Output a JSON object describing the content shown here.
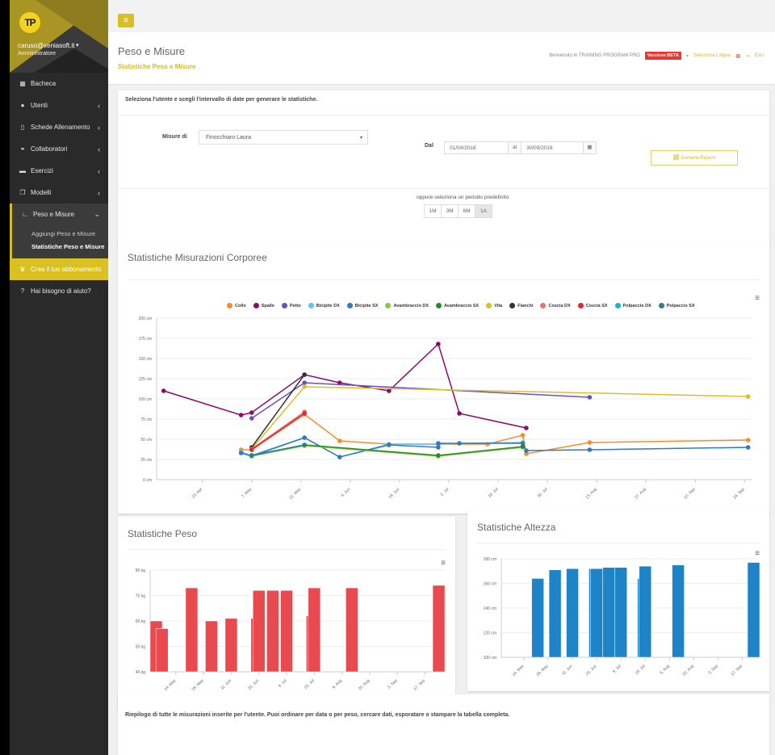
{
  "sidebar": {
    "logo": "TP",
    "user_email": "caruso@xeniasoft.it",
    "user_role": "Amministratore",
    "items": [
      {
        "label": "Bacheca",
        "icon": "dashboard-icon",
        "glyph": "▦"
      },
      {
        "label": "Utenti",
        "icon": "users-icon",
        "glyph": "👥"
      },
      {
        "label": "Schede Allenamento",
        "icon": "clipboard-icon",
        "glyph": "▯"
      },
      {
        "label": "Collaboratori",
        "icon": "handshake-icon",
        "glyph": "⚭"
      },
      {
        "label": "Esercizi",
        "icon": "folder-open-icon",
        "glyph": "▬"
      },
      {
        "label": "Modelli",
        "icon": "copy-icon",
        "glyph": "❐"
      }
    ],
    "open_item": {
      "label": "Peso e Misure",
      "icon": "chart-line-icon",
      "glyph": "∟"
    },
    "sub_items": [
      "Aggiungi Peso e Misure",
      "Statistiche Peso e Misure"
    ],
    "promo": {
      "label": "Crea il tuo abbonamento",
      "glyph": "🏆"
    },
    "help": {
      "label": "Hai bisogno di aiuto?",
      "glyph": "?"
    }
  },
  "header": {
    "title": "Peso e Misure",
    "subtitle": "Statistiche Peso e Misure",
    "welcome": "Benvenuto in TRAINING PROGRAM PRO",
    "beta_badge": "Versione BETA",
    "language": "Seleziona Lingua",
    "exit": "Esci"
  },
  "form": {
    "intro": "Seleziona l'utente e scegli l'intervallo di date per generare le statistiche.",
    "user_label": "Misure di",
    "user_value": "Finocchiaro Laura",
    "from_label": "Dal",
    "from_value": "01/04/2018",
    "to_label": "al",
    "to_value": "30/09/2018",
    "generate_button": "Genera Report",
    "period_label": "oppure seleziona un periodo predefinito",
    "periods": [
      "1M",
      "3M",
      "6M",
      "1A"
    ],
    "active_period": "1A"
  },
  "measure_card": {
    "title": "Statistiche Misurazioni Corporee"
  },
  "peso_card": {
    "title": "Statistiche Peso"
  },
  "alt_card": {
    "title": "Statistiche Altezza"
  },
  "table_card": {
    "intro": "Riepilogo di tutte le misurazioni inserite per l'utente. Puoi ordinare per data o per peso, cercare dati, esporatare o stampare la tabella completa."
  },
  "chart_data": [
    {
      "type": "line",
      "title": "Statistiche Misurazioni Corporee",
      "ylabel": "cm",
      "ylim": [
        0,
        200
      ],
      "yticks": [
        "0 cm",
        "25 cm",
        "50 cm",
        "75 cm",
        "100 cm",
        "125 cm",
        "150 cm",
        "175 cm",
        "200 cm"
      ],
      "xticks": [
        "23. Apr",
        "7. May",
        "21. May",
        "4. Jun",
        "18. Jun",
        "2. Jul",
        "16. Jul",
        "30. Jul",
        "13. Aug",
        "27. Aug",
        "10. Sep",
        "24. Sep"
      ],
      "legend_position": "top",
      "series": [
        {
          "name": "Collo",
          "color": "#f28f2c",
          "points": [
            [
              "4 May",
              37
            ],
            [
              "7 May",
              37
            ],
            [
              "22 May",
              81
            ],
            [
              "1 Jun",
              48
            ],
            [
              "15 Jun",
              44
            ],
            [
              "29 Jun",
              44
            ],
            [
              "13 Jul",
              44
            ],
            [
              "23 Jul",
              55
            ],
            [
              "24 Jul",
              32
            ],
            [
              "11 Aug",
              46
            ],
            [
              "25 Sep",
              49
            ]
          ]
        },
        {
          "name": "Spalle",
          "color": "#8b0a6e",
          "points": [
            [
              "12 Apr",
              110
            ],
            [
              "4 May",
              80
            ],
            [
              "7 May",
              83
            ],
            [
              "22 May",
              130
            ],
            [
              "1 Jun",
              120
            ],
            [
              "15 Jun",
              110
            ],
            [
              "29 Jun",
              168
            ],
            [
              "5 Jul",
              82
            ],
            [
              "24 Jul",
              64
            ]
          ]
        },
        {
          "name": "Petto",
          "color": "#6a4fc4",
          "points": [
            [
              "7 May",
              76
            ],
            [
              "22 May",
              120
            ],
            [
              "11 Aug",
              102
            ]
          ]
        },
        {
          "name": "Bicipite DX",
          "color": "#5fc4f2",
          "points": [
            [
              "4 May",
              34
            ],
            [
              "7 May",
              30
            ],
            [
              "22 May",
              52
            ],
            [
              "1 Jun",
              28
            ],
            [
              "15 Jun",
              44
            ],
            [
              "29 Jun",
              44
            ],
            [
              "5 Jul",
              45
            ],
            [
              "23 Jul",
              46
            ]
          ]
        },
        {
          "name": "Bicipite SX",
          "color": "#2f7ac4",
          "points": [
            [
              "4 May",
              33
            ],
            [
              "7 May",
              29
            ],
            [
              "22 May",
              52
            ],
            [
              "1 Jun",
              28
            ],
            [
              "15 Jun",
              43
            ],
            [
              "29 Jun",
              40
            ],
            [
              "29 Jun",
              45
            ],
            [
              "5 Jul",
              45
            ],
            [
              "23 Jul",
              45
            ],
            [
              "24 Jul",
              36
            ],
            [
              "11 Aug",
              37
            ],
            [
              "25 Sep",
              40
            ]
          ]
        },
        {
          "name": "Avambraccio DX",
          "color": "#8cc63f",
          "points": [
            [
              "7 May",
              29
            ],
            [
              "22 May",
              42
            ],
            [
              "29 Jun",
              29
            ],
            [
              "23 Jul",
              40
            ]
          ]
        },
        {
          "name": "Avambraccio SX",
          "color": "#2a8a2a",
          "points": [
            [
              "7 May",
              30
            ],
            [
              "22 May",
              43
            ],
            [
              "29 Jun",
              30
            ],
            [
              "23 Jul",
              41
            ]
          ]
        },
        {
          "name": "Vita",
          "color": "#d9c12b",
          "points": [
            [
              "7 May",
              38
            ],
            [
              "22 May",
              115
            ],
            [
              "25 Sep",
              103
            ]
          ]
        },
        {
          "name": "Fianchi",
          "color": "#333333",
          "points": [
            [
              "7 May",
              40
            ],
            [
              "22 May",
              130
            ]
          ]
        },
        {
          "name": "Coscia DX",
          "color": "#f07070",
          "points": [
            [
              "7 May",
              38
            ],
            [
              "22 May",
              84
            ]
          ]
        },
        {
          "name": "Coscia SX",
          "color": "#e8233a",
          "points": [
            [
              "7 May",
              37
            ],
            [
              "22 May",
              82
            ]
          ]
        },
        {
          "name": "Polpaccio DX",
          "color": "#1ab5c9",
          "points": [
            [
              "7 May",
              30
            ],
            [
              "22 May",
              43
            ]
          ]
        },
        {
          "name": "Polpaccio SX",
          "color": "#2f7f86",
          "points": [
            [
              "7 May",
              30
            ],
            [
              "22 May",
              43
            ]
          ]
        }
      ]
    },
    {
      "type": "bar",
      "title": "Statistiche Peso",
      "ylabel": "kg",
      "ylim": [
        40,
        80
      ],
      "yticks": [
        "40 kg",
        "50 kg",
        "60 kg",
        "70 kg",
        "80 kg"
      ],
      "xticks": [
        "14. May",
        "28. May",
        "11. Jun",
        "25. Jun",
        "9. Jul",
        "23. Jul",
        "6. Aug",
        "20. Aug",
        "3. Sep",
        "17. Sep"
      ],
      "color": "#e84a4f",
      "categories": [
        "4 May",
        "7 May",
        "22 May",
        "1 Jun",
        "11 Jun",
        "24 Jun",
        "25 Jun",
        "2 Jul",
        "9 Jul",
        "22 Jul",
        "23 Jul",
        "11 Aug",
        "25 Sep"
      ],
      "values": [
        60,
        57,
        73,
        60,
        61,
        61,
        72,
        72,
        72,
        62,
        73,
        73,
        74
      ]
    },
    {
      "type": "bar",
      "title": "Statistiche Altezza",
      "ylabel": "cm",
      "ylim": [
        100,
        180
      ],
      "yticks": [
        "100 cm",
        "120 cm",
        "140 cm",
        "160 cm",
        "180 cm"
      ],
      "xticks": [
        "14. May",
        "28. May",
        "11. Jun",
        "25. Jun",
        "9. Jul",
        "23. Jul",
        "6. Aug",
        "20. Aug",
        "3. Sep",
        "17. Sep"
      ],
      "color": "#1f83c8",
      "categories": [
        "22 May",
        "1 Jun",
        "11 Jun",
        "24 Jun",
        "25 Jun",
        "2 Jul",
        "9 Jul",
        "22 Jul",
        "23 Jul",
        "11 Aug",
        "25 Sep"
      ],
      "values": [
        164,
        171,
        172,
        172,
        172,
        173,
        173,
        164,
        174,
        175,
        177
      ]
    }
  ]
}
